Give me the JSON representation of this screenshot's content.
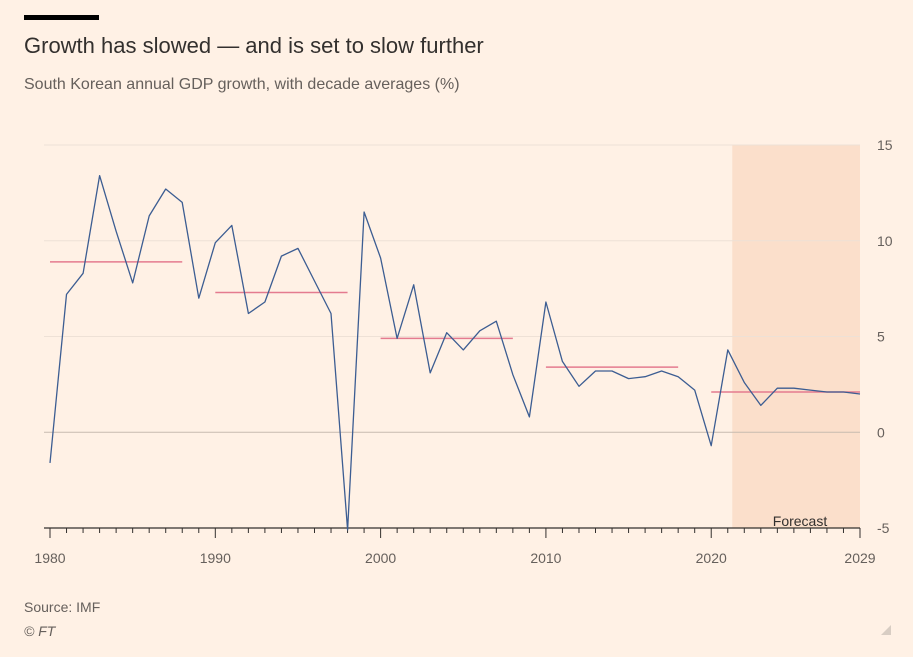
{
  "header": {
    "title": "Growth has slowed — and is set to slow further",
    "subtitle": "South Korean annual GDP growth, with decade averages (%)"
  },
  "footer": {
    "source": "Source: IMF",
    "credit": "© FT"
  },
  "colors": {
    "background": "#fff1e5",
    "line": "#3c5d92",
    "average": "#e47b8f",
    "forecast_band": "#fbdfcb",
    "grid": "#eee1d6",
    "zero_line": "#c7bbb0",
    "axis_text": "#66605c"
  },
  "chart_data": {
    "type": "line",
    "title": "Growth has slowed — and is set to slow further",
    "subtitle": "South Korean annual GDP growth, with decade averages (%)",
    "x": [
      1980,
      1981,
      1982,
      1983,
      1984,
      1985,
      1986,
      1987,
      1988,
      1989,
      1990,
      1991,
      1992,
      1993,
      1994,
      1995,
      1996,
      1997,
      1998,
      1999,
      2000,
      2001,
      2002,
      2003,
      2004,
      2005,
      2006,
      2007,
      2008,
      2009,
      2010,
      2011,
      2012,
      2013,
      2014,
      2015,
      2016,
      2017,
      2018,
      2019,
      2020,
      2021,
      2022,
      2023,
      2024,
      2025,
      2026,
      2027,
      2028,
      2029
    ],
    "series": [
      {
        "values": [
          -1.6,
          7.2,
          8.3,
          13.4,
          10.5,
          7.8,
          11.3,
          12.7,
          12.0,
          7.0,
          9.9,
          10.8,
          6.2,
          6.8,
          9.2,
          9.6,
          7.9,
          6.2,
          -5.1,
          11.5,
          9.1,
          4.9,
          7.7,
          3.1,
          5.2,
          4.3,
          5.3,
          5.8,
          3.0,
          0.8,
          6.8,
          3.7,
          2.4,
          3.2,
          3.2,
          2.8,
          2.9,
          3.2,
          2.9,
          2.2,
          -0.7,
          4.3,
          2.6,
          1.4,
          2.3,
          2.3,
          2.2,
          2.1,
          2.1,
          2.0
        ]
      }
    ],
    "decade_averages": [
      {
        "start": 1980,
        "end": 1988,
        "value": 8.9
      },
      {
        "start": 1990,
        "end": 1998,
        "value": 7.3
      },
      {
        "start": 2000,
        "end": 2008,
        "value": 4.9
      },
      {
        "start": 2010,
        "end": 2018,
        "value": 3.4
      },
      {
        "start": 2020,
        "end": 2029,
        "value": 2.1
      }
    ],
    "forecast": {
      "start": 2022,
      "end": 2029,
      "label": "Forecast"
    },
    "xlim": [
      1980,
      2029
    ],
    "ylim": [
      -5,
      15
    ],
    "yticks": [
      15,
      10,
      5,
      0,
      -5
    ],
    "xticks": [
      1980,
      1990,
      2000,
      2010,
      2020,
      2029
    ],
    "y_axis_position": "right",
    "grid": true
  }
}
